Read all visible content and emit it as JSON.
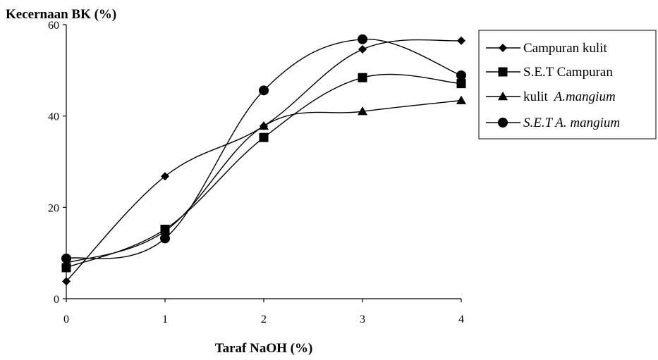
{
  "chart_data": {
    "type": "line",
    "title": "",
    "ylabel": "Kecernaan BK (%)",
    "xlabel": "Taraf NaOH (%)",
    "x": [
      0,
      1,
      2,
      3,
      4
    ],
    "xlim": [
      0,
      4
    ],
    "ylim": [
      0,
      60
    ],
    "xticks": [
      "0",
      "1",
      "2",
      "3",
      "4"
    ],
    "yticks": [
      "0",
      "20",
      "40",
      "60"
    ],
    "grid": false,
    "legend_placement": "right",
    "smoothed": true,
    "series": [
      {
        "name": "Campuran kulit",
        "marker": "diamond",
        "values": [
          3.8,
          26.8,
          37.8,
          54.6,
          56.5
        ]
      },
      {
        "name": "S.E.T Campuran",
        "marker": "square",
        "values": [
          6.8,
          15.2,
          35.3,
          48.4,
          47.1
        ]
      },
      {
        "name": "kulit A.mangium",
        "name_plain": "kulit ",
        "name_italic": "A.mangium",
        "marker": "triangle",
        "values": [
          7.8,
          14.8,
          37.8,
          41.0,
          43.4
        ]
      },
      {
        "name": "S.E.T A. mangium",
        "marker": "circle",
        "values": [
          8.8,
          13.2,
          45.6,
          56.8,
          48.9
        ]
      }
    ],
    "colors": {
      "line": "#000000",
      "marker": "#000000",
      "background": "#ffffff"
    }
  }
}
